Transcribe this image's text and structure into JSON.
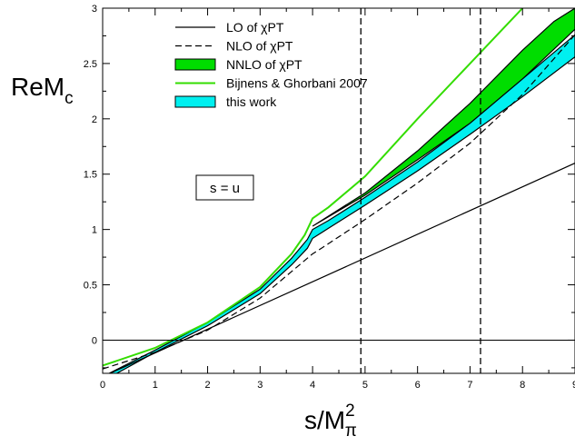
{
  "chart_data": {
    "type": "line",
    "xlabel": {
      "base": "s/M",
      "sub": "π",
      "sup": "2"
    },
    "ylabel": {
      "base": "ReM",
      "sub": "c"
    },
    "xlim": [
      0,
      9
    ],
    "ylim": [
      -0.3,
      3
    ],
    "x_ticks": [
      0,
      1,
      2,
      3,
      4,
      5,
      6,
      7,
      8,
      9
    ],
    "y_ticks": [
      0,
      0.5,
      1,
      1.5,
      2,
      2.5,
      3
    ],
    "y_tick_labels": [
      "0",
      "0.5",
      "1",
      "1.5",
      "2",
      "2.5",
      "3"
    ],
    "annotation": "s = u",
    "legend_position": "top-left",
    "legend": [
      {
        "label": "LO of χPT",
        "style": "solid",
        "color": "#000000"
      },
      {
        "label": "NLO of χPT",
        "style": "dashed",
        "color": "#000000"
      },
      {
        "label": "NNLO of χPT",
        "style": "band",
        "color": "#00dd00"
      },
      {
        "label": "Bijnens & Ghorbani 2007",
        "style": "solid",
        "color": "#33dd00"
      },
      {
        "label": "this work",
        "style": "band",
        "color": "#00f0f0"
      }
    ],
    "reference_lines": {
      "horizontal_y": 0,
      "vertical_dashed_x": [
        4.92,
        7.2
      ]
    },
    "series": [
      {
        "name": "LO of χPT",
        "style": "solid",
        "color": "#000000",
        "points": [
          [
            0,
            -0.33
          ],
          [
            9,
            1.6
          ]
        ]
      },
      {
        "name": "NLO of χPT",
        "style": "dashed",
        "color": "#000000",
        "points": [
          [
            0,
            -0.26
          ],
          [
            1,
            -0.11
          ],
          [
            2,
            0.09
          ],
          [
            3,
            0.38
          ],
          [
            3.6,
            0.62
          ],
          [
            3.9,
            0.74
          ],
          [
            4,
            0.78
          ],
          [
            4.2,
            0.84
          ],
          [
            5,
            1.09
          ],
          [
            6,
            1.42
          ],
          [
            7,
            1.78
          ],
          [
            8,
            2.22
          ],
          [
            9,
            2.76
          ]
        ]
      },
      {
        "name": "NNLO of χPT",
        "style": "band",
        "color": "#00dd00",
        "upper": [
          [
            4,
            1.03
          ],
          [
            5,
            1.33
          ],
          [
            6,
            1.71
          ],
          [
            7,
            2.14
          ],
          [
            8,
            2.62
          ],
          [
            8.6,
            2.88
          ],
          [
            9,
            3.0
          ]
        ],
        "lower": [
          [
            4,
            1.03
          ],
          [
            5,
            1.31
          ],
          [
            6,
            1.63
          ],
          [
            7,
            1.96
          ],
          [
            8,
            2.36
          ],
          [
            9,
            2.81
          ]
        ]
      },
      {
        "name": "Bijnens & Ghorbani 2007",
        "style": "solid",
        "color": "#33dd00",
        "points": [
          [
            0,
            -0.23
          ],
          [
            1,
            -0.07
          ],
          [
            2,
            0.16
          ],
          [
            3,
            0.48
          ],
          [
            3.6,
            0.78
          ],
          [
            3.85,
            0.95
          ],
          [
            4,
            1.1
          ],
          [
            4.3,
            1.2
          ],
          [
            5,
            1.48
          ],
          [
            6,
            2.0
          ],
          [
            7,
            2.5
          ],
          [
            7.5,
            2.75
          ],
          [
            8,
            3.0
          ],
          [
            8.15,
            3.1
          ]
        ]
      },
      {
        "name": "this work",
        "style": "band",
        "color": "#00f0f0",
        "upper": [
          [
            0,
            -0.33
          ],
          [
            1,
            -0.09
          ],
          [
            2,
            0.16
          ],
          [
            3,
            0.46
          ],
          [
            3.6,
            0.74
          ],
          [
            3.9,
            0.91
          ],
          [
            4,
            1.0
          ],
          [
            4.3,
            1.08
          ],
          [
            5,
            1.29
          ],
          [
            6,
            1.61
          ],
          [
            7,
            1.96
          ],
          [
            8,
            2.36
          ],
          [
            9,
            2.76
          ]
        ],
        "lower": [
          [
            0,
            -0.37
          ],
          [
            1,
            -0.11
          ],
          [
            2,
            0.13
          ],
          [
            3,
            0.42
          ],
          [
            3.6,
            0.68
          ],
          [
            3.9,
            0.83
          ],
          [
            4,
            0.92
          ],
          [
            4.3,
            1.01
          ],
          [
            5,
            1.22
          ],
          [
            6,
            1.53
          ],
          [
            7,
            1.86
          ],
          [
            8,
            2.2
          ],
          [
            9,
            2.56
          ]
        ]
      }
    ]
  }
}
